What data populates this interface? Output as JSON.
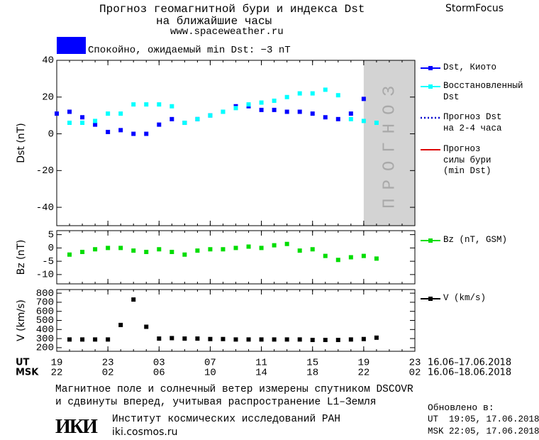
{
  "header": {
    "title": "Прогноз геомагнитной бури и индекса Dst",
    "subtitle": "на ближайшие часы",
    "url": "www.spaceweather.ru",
    "brand": "StormFocus"
  },
  "status": {
    "text": "Спокойно, ожидаемый min Dst: −3 nT",
    "color": "#0000ff"
  },
  "chart_data": [
    {
      "type": "line",
      "ylabel": "Dst (nT)",
      "xlim": [
        0,
        28
      ],
      "ylim": [
        -50,
        40
      ],
      "yticks": [
        40,
        20,
        0,
        -20,
        -40
      ],
      "shade": {
        "label": "ПРОГНОЗ",
        "x": [
          24,
          28
        ],
        "color": "#d3d3d3"
      },
      "series": [
        {
          "name": "Dst, Киото",
          "color": "#0000ff",
          "marker": "square",
          "x": [
            0,
            1,
            2,
            3,
            4,
            5,
            6,
            7,
            8,
            9,
            10,
            11,
            12,
            13,
            14,
            15,
            16,
            17,
            18,
            19,
            20,
            21,
            22,
            23,
            24
          ],
          "values": [
            11,
            12,
            9,
            5,
            1,
            2,
            0,
            0,
            5,
            8,
            6,
            8,
            10,
            12,
            15,
            15,
            13,
            13,
            12,
            12,
            11,
            9,
            8,
            11,
            19
          ]
        },
        {
          "name": "Восстановленный\nDst",
          "color": "#00ffff",
          "marker": "square",
          "x": [
            1,
            2,
            3,
            4,
            5,
            6,
            7,
            8,
            9,
            10,
            11,
            12,
            13,
            14,
            15,
            16,
            17,
            18,
            19,
            20,
            21,
            22,
            23,
            24,
            25
          ],
          "values": [
            6,
            6,
            7,
            11,
            11,
            16,
            16,
            16,
            15,
            6,
            8,
            10,
            12,
            14,
            16,
            17,
            18,
            20,
            22,
            22,
            24,
            21,
            8,
            7,
            6
          ]
        },
        {
          "name": "Прогноз Dst\nна 2-4 часа",
          "color": "#0000cc",
          "style": "dotted",
          "x": [
            24,
            25,
            26,
            27
          ],
          "values": [
            19,
            5,
            5,
            5
          ]
        },
        {
          "name": "Прогноз\nсилы бури\n(min Dst)",
          "color": "#dd0000",
          "x": [
            0,
            20,
            21,
            28
          ],
          "values": [
            0,
            0,
            -3,
            -3
          ]
        }
      ]
    },
    {
      "type": "line",
      "ylabel": "Bz (nT)",
      "xlim": [
        0,
        28
      ],
      "ylim": [
        -13.5,
        6.5
      ],
      "yticks": [
        5,
        0,
        -5,
        -10
      ],
      "series": [
        {
          "name": "Bz (nT, GSM)",
          "color": "#00dd00",
          "marker": "square",
          "x": [
            1,
            2,
            3,
            4,
            5,
            6,
            7,
            8,
            9,
            10,
            11,
            12,
            13,
            14,
            15,
            16,
            17,
            18,
            19,
            20,
            21,
            22,
            23,
            24,
            25
          ],
          "values": [
            -2.5,
            -1.5,
            -0.5,
            0,
            0,
            -1,
            -1.5,
            -0.5,
            -1.5,
            -2.5,
            -1,
            -0.5,
            -0.5,
            0,
            0.5,
            0,
            1,
            1.5,
            -1,
            -0.5,
            -3,
            -4.5,
            -3.5,
            -3,
            -4
          ]
        }
      ]
    },
    {
      "type": "line",
      "ylabel": "V (km/s)",
      "xlim": [
        0,
        28
      ],
      "ylim": [
        160,
        840
      ],
      "yticks": [
        800,
        700,
        600,
        500,
        400,
        300,
        200
      ],
      "series": [
        {
          "name": "V (km/s)",
          "color": "#000000",
          "marker": "square",
          "x": [
            1,
            2,
            3,
            4,
            5,
            6,
            7,
            8,
            9,
            10,
            11,
            12,
            13,
            14,
            15,
            16,
            17,
            18,
            19,
            20,
            21,
            22,
            23,
            24,
            25
          ],
          "values": [
            290,
            290,
            290,
            290,
            450,
            730,
            430,
            300,
            305,
            300,
            300,
            295,
            295,
            290,
            290,
            290,
            290,
            290,
            290,
            285,
            285,
            285,
            290,
            295,
            310
          ]
        }
      ],
      "xticks": [
        {
          "value": 0,
          "label": "19"
        },
        {
          "value": 4,
          "label": "23"
        },
        {
          "value": 8,
          "label": "03"
        },
        {
          "value": 12,
          "label": "07"
        },
        {
          "value": 16,
          "label": "11"
        },
        {
          "value": 20,
          "label": "15"
        },
        {
          "value": 24,
          "label": "19"
        },
        {
          "value": 28,
          "label": "23"
        }
      ],
      "xticks_msk": [
        {
          "value": 0,
          "label": "22"
        },
        {
          "value": 4,
          "label": "02"
        },
        {
          "value": 8,
          "label": "06"
        },
        {
          "value": 12,
          "label": "10"
        },
        {
          "value": 16,
          "label": "14"
        },
        {
          "value": 20,
          "label": "18"
        },
        {
          "value": 24,
          "label": "22"
        },
        {
          "value": 28,
          "label": "02"
        }
      ],
      "x_row_labels": [
        "UT",
        "MSK"
      ],
      "x_date_ranges": [
        "16.06–17.06.2018",
        "16.06–18.06.2018"
      ]
    }
  ],
  "footer": {
    "note": "Магнитное поле и солнечный ветер измерены спутником DSCOVR\nи сдвинуты вперед, учитывая распространение L1–Земля",
    "logo": "ИКИ",
    "institute": "Институт космических исследований РАН",
    "site": "iki.cosmos.ru",
    "updated_title": "Обновлено в:",
    "updated_ut": "UT  19:05, 17.06.2018",
    "updated_msk": "MSK 22:05, 17.06.2018"
  }
}
